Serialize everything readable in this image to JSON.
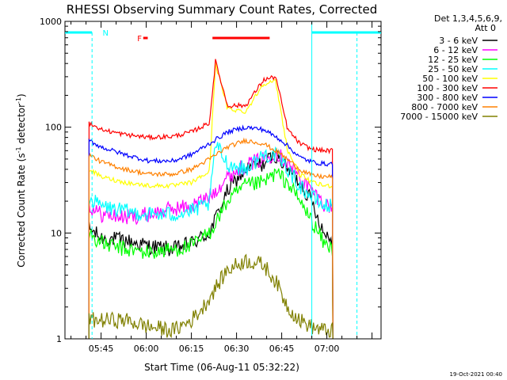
{
  "chart_data": {
    "type": "line",
    "title": "RHESSI Observing Summary Count Rates, Corrected",
    "xlabel": "Start Time (06-Aug-11 05:32:22)",
    "ylabel_main": "Corrected Count Rate (s",
    "ylabel_sup1": "-1",
    "ylabel_mid": " detector",
    "ylabel_sup2": "-1",
    "ylabel_end": ")",
    "y_scale": "log",
    "ylim": [
      1,
      1000
    ],
    "xlim_minutes": [
      -12,
      93
    ],
    "x_ticks": [
      {
        "label": "05:45",
        "t": 0
      },
      {
        "label": "06:00",
        "t": 15
      },
      {
        "label": "06:15",
        "t": 30
      },
      {
        "label": "06:30",
        "t": 45
      },
      {
        "label": "06:45",
        "t": 60
      },
      {
        "label": "07:00",
        "t": 75
      }
    ],
    "y_ticks": [
      {
        "label": "1",
        "v": 1
      },
      {
        "label": "10",
        "v": 10
      },
      {
        "label": "100",
        "v": 100
      },
      {
        "label": "1000",
        "v": 1000
      }
    ],
    "legend_header": [
      "Det 1,3,4,5,6,9,",
      "Att 0"
    ],
    "legend_position": "right",
    "series": [
      {
        "name": "3 - 6 keV",
        "color": "#000000",
        "t": [
          -4,
          0,
          8,
          16,
          24,
          30,
          36,
          42,
          48,
          54,
          58,
          62,
          66,
          70,
          74,
          77
        ],
        "v": [
          11,
          9,
          8.5,
          7.5,
          7,
          8,
          10,
          25,
          40,
          45,
          55,
          40,
          30,
          20,
          10,
          9
        ]
      },
      {
        "name": "6 - 12 keV",
        "color": "#ff00ff",
        "t": [
          -4,
          0,
          8,
          16,
          24,
          30,
          36,
          42,
          48,
          54,
          58,
          62,
          66,
          70,
          74,
          77
        ],
        "v": [
          18,
          15,
          14,
          15,
          17,
          18,
          22,
          34,
          44,
          50,
          58,
          46,
          34,
          25,
          19,
          17
        ]
      },
      {
        "name": "12 - 25 keV",
        "color": "#00ff00",
        "t": [
          -4,
          0,
          8,
          16,
          24,
          30,
          36,
          42,
          48,
          54,
          58,
          62,
          66,
          70,
          74,
          77
        ],
        "v": [
          10,
          8,
          7,
          6.5,
          7,
          7.5,
          10,
          20,
          28,
          30,
          37,
          30,
          20,
          13,
          8,
          7
        ]
      },
      {
        "name": "25 - 50 keV",
        "color": "#00ffff",
        "t": [
          -4,
          0,
          8,
          16,
          24,
          30,
          36,
          38,
          42,
          48,
          54,
          58,
          62,
          66,
          70,
          74,
          77
        ],
        "v": [
          21,
          18,
          16,
          15,
          15,
          16,
          19,
          70,
          45,
          40,
          55,
          55,
          40,
          28,
          22,
          18,
          18
        ]
      },
      {
        "name": "50 - 100 keV",
        "color": "#ffff00",
        "t": [
          -4,
          0,
          8,
          16,
          24,
          30,
          36,
          38,
          42,
          48,
          54,
          58,
          62,
          66,
          70,
          74,
          77
        ],
        "v": [
          40,
          34,
          30,
          28,
          28,
          30,
          38,
          400,
          150,
          140,
          260,
          270,
          60,
          36,
          30,
          28,
          28
        ]
      },
      {
        "name": "100 - 300 keV",
        "color": "#ff0000",
        "t": [
          -4,
          0,
          8,
          16,
          24,
          30,
          36,
          38,
          42,
          48,
          54,
          58,
          62,
          66,
          70,
          74,
          77
        ],
        "v": [
          110,
          95,
          85,
          80,
          82,
          90,
          110,
          420,
          160,
          160,
          280,
          300,
          95,
          70,
          62,
          60,
          60
        ]
      },
      {
        "name": "300 - 800 keV",
        "color": "#0000ff",
        "t": [
          -4,
          0,
          8,
          16,
          24,
          30,
          36,
          42,
          48,
          54,
          60,
          66,
          70,
          74,
          77
        ],
        "v": [
          75,
          65,
          55,
          48,
          48,
          55,
          70,
          90,
          100,
          95,
          75,
          52,
          47,
          45,
          45
        ]
      },
      {
        "name": "800 - 7000 keV",
        "color": "#ff8000",
        "t": [
          -4,
          0,
          8,
          16,
          24,
          30,
          36,
          42,
          48,
          54,
          60,
          66,
          70,
          74,
          77
        ],
        "v": [
          55,
          47,
          40,
          36,
          36,
          40,
          50,
          65,
          75,
          70,
          55,
          40,
          35,
          34,
          34
        ]
      },
      {
        "name": "7000 - 15000 keV",
        "color": "#808000",
        "t": [
          -3,
          0,
          8,
          16,
          24,
          30,
          34,
          38,
          42,
          48,
          54,
          58,
          62,
          66,
          70,
          74,
          77
        ],
        "v": [
          1.5,
          1.5,
          1.5,
          1.3,
          1.2,
          1.5,
          2,
          3,
          4.5,
          5.5,
          5,
          3.5,
          2,
          1.5,
          1.3,
          1.2,
          1.2
        ]
      }
    ],
    "annotations": {
      "n_label": "N",
      "f_label": "F",
      "footer": "19-Oct-2021 00:40"
    }
  }
}
